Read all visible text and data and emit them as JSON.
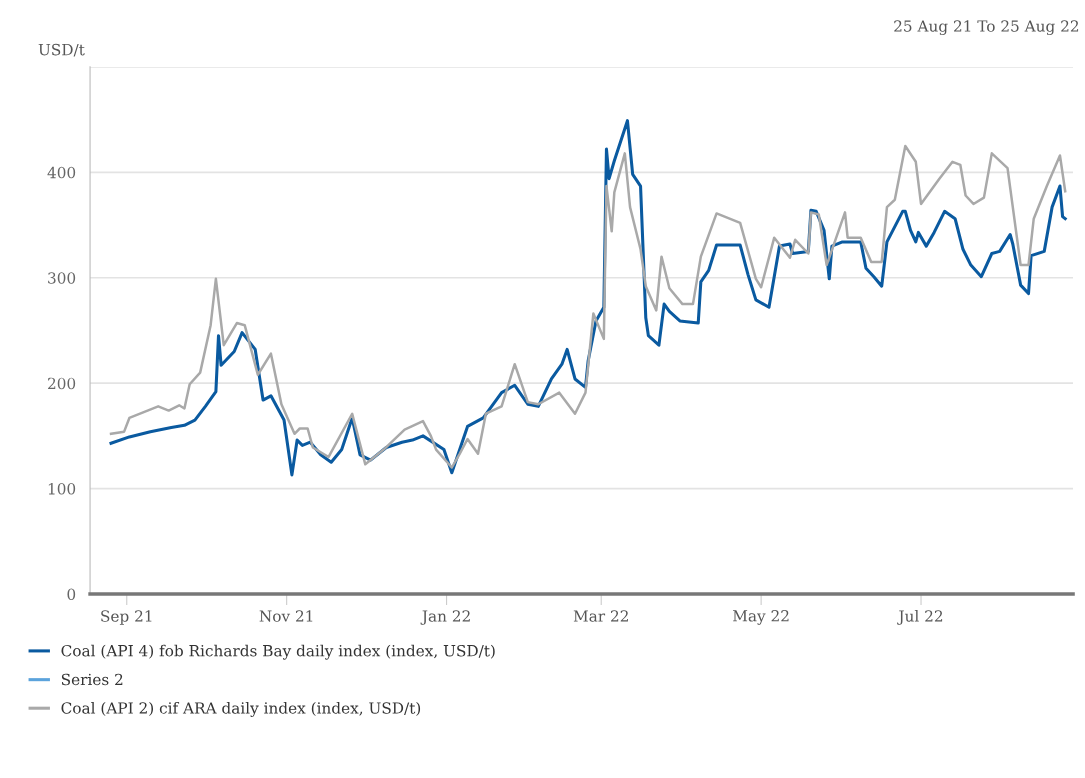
{
  "chart_data": {
    "type": "line",
    "subtitle": "25 Aug 21 To 25 Aug 22",
    "ylabel": "USD/t",
    "xlim": [
      "2021-08-18",
      "2022-08-28"
    ],
    "xticks": [
      {
        "value": "2021-09-01",
        "label": "Sep 21"
      },
      {
        "value": "2021-11-01",
        "label": "Nov 21"
      },
      {
        "value": "2022-01-01",
        "label": "Jan 22"
      },
      {
        "value": "2022-03-01",
        "label": "Mar 22"
      },
      {
        "value": "2022-05-01",
        "label": "May 22"
      },
      {
        "value": "2022-07-01",
        "label": "Jul 22"
      }
    ],
    "ylim": [
      0,
      500
    ],
    "yticks": [
      0,
      100,
      200,
      300,
      400,
      {
        "value": 500,
        "label": null
      }
    ],
    "grid": "y",
    "legend": "bottom",
    "marker": "none",
    "line_style": "solid",
    "series": [
      {
        "name": "Coal (API 4) fob Richards Bay daily index (index, USD/t)",
        "color": "#0a5aa0",
        "x": [
          "2021-08-26",
          "2021-09-02",
          "2021-09-10",
          "2021-09-18",
          "2021-09-23",
          "2021-09-27",
          "2021-10-01",
          "2021-10-05",
          "2021-10-06",
          "2021-10-07",
          "2021-10-12",
          "2021-10-15",
          "2021-10-20",
          "2021-10-23",
          "2021-10-26",
          "2021-10-31",
          "2021-11-03",
          "2021-11-05",
          "2021-11-07",
          "2021-11-10",
          "2021-11-14",
          "2021-11-18",
          "2021-11-22",
          "2021-11-26",
          "2021-11-29",
          "2021-12-03",
          "2021-12-09",
          "2021-12-15",
          "2021-12-19",
          "2021-12-23",
          "2021-12-31",
          "2022-01-03",
          "2022-01-09",
          "2022-01-15",
          "2022-01-22",
          "2022-01-27",
          "2022-02-01",
          "2022-02-05",
          "2022-02-10",
          "2022-02-14",
          "2022-02-16",
          "2022-02-19",
          "2022-02-23",
          "2022-02-24",
          "2022-02-27",
          "2022-03-02",
          "2022-03-03",
          "2022-03-04",
          "2022-03-06",
          "2022-03-11",
          "2022-03-13",
          "2022-03-16",
          "2022-03-18",
          "2022-03-19",
          "2022-03-23",
          "2022-03-25",
          "2022-03-27",
          "2022-03-31",
          "2022-04-07",
          "2022-04-08",
          "2022-04-11",
          "2022-04-14",
          "2022-04-23",
          "2022-04-26",
          "2022-04-29",
          "2022-05-04",
          "2022-05-08",
          "2022-05-12",
          "2022-05-13",
          "2022-05-19",
          "2022-05-20",
          "2022-05-22",
          "2022-05-25",
          "2022-05-27",
          "2022-05-28",
          "2022-06-01",
          "2022-06-08",
          "2022-06-10",
          "2022-06-13",
          "2022-06-16",
          "2022-06-18",
          "2022-06-24",
          "2022-06-25",
          "2022-06-27",
          "2022-06-29",
          "2022-06-30",
          "2022-07-03",
          "2022-07-06",
          "2022-07-10",
          "2022-07-14",
          "2022-07-17",
          "2022-07-20",
          "2022-07-24",
          "2022-07-28",
          "2022-07-31",
          "2022-08-04",
          "2022-08-05",
          "2022-08-08",
          "2022-08-11",
          "2022-08-12",
          "2022-08-17",
          "2022-08-20",
          "2022-08-23",
          "2022-08-24",
          "2022-08-25"
        ],
        "values": [
          143,
          149,
          154,
          158,
          160,
          165,
          178,
          192,
          245,
          217,
          230,
          248,
          232,
          184,
          188,
          165,
          113,
          146,
          141,
          144,
          132,
          125,
          137,
          167,
          132,
          127,
          139,
          144,
          146,
          150,
          137,
          115,
          159,
          167,
          191,
          198,
          180,
          178,
          204,
          218,
          232,
          204,
          196,
          221,
          259,
          272,
          422,
          394,
          411,
          449,
          398,
          387,
          262,
          245,
          236,
          275,
          268,
          259,
          257,
          296,
          307,
          331,
          331,
          303,
          279,
          272,
          330,
          332,
          323,
          325,
          364,
          363,
          345,
          299,
          330,
          334,
          334,
          309,
          301,
          292,
          334,
          363,
          363,
          345,
          334,
          343,
          330,
          343,
          363,
          356,
          327,
          312,
          301,
          323,
          325,
          341,
          332,
          293,
          285,
          321,
          325,
          367,
          387,
          358,
          356
        ]
      },
      {
        "name": "Series 2",
        "color": "#5ba3dc"
      },
      {
        "name": "Coal (API 2) cif ARA daily index (index, USD/t)",
        "color": "#a9a9a9",
        "x": [
          "2021-08-26",
          "2021-08-31",
          "2021-09-02",
          "2021-09-13",
          "2021-09-17",
          "2021-09-21",
          "2021-09-23",
          "2021-09-25",
          "2021-09-29",
          "2021-10-03",
          "2021-10-05",
          "2021-10-08",
          "2021-10-13",
          "2021-10-16",
          "2021-10-21",
          "2021-10-26",
          "2021-10-30",
          "2021-11-04",
          "2021-11-06",
          "2021-11-09",
          "2021-11-11",
          "2021-11-17",
          "2021-11-26",
          "2021-12-01",
          "2021-12-08",
          "2021-12-16",
          "2021-12-23",
          "2021-12-26",
          "2021-12-28",
          "2022-01-03",
          "2022-01-06",
          "2022-01-09",
          "2022-01-13",
          "2022-01-16",
          "2022-01-22",
          "2022-01-27",
          "2022-02-01",
          "2022-02-05",
          "2022-02-13",
          "2022-02-19",
          "2022-02-23",
          "2022-02-26",
          "2022-03-02",
          "2022-03-03",
          "2022-03-05",
          "2022-03-06",
          "2022-03-10",
          "2022-03-12",
          "2022-03-16",
          "2022-03-18",
          "2022-03-22",
          "2022-03-24",
          "2022-03-27",
          "2022-04-01",
          "2022-04-05",
          "2022-04-08",
          "2022-04-14",
          "2022-04-23",
          "2022-04-29",
          "2022-05-01",
          "2022-05-06",
          "2022-05-12",
          "2022-05-14",
          "2022-05-19",
          "2022-05-20",
          "2022-05-23",
          "2022-05-26",
          "2022-06-02",
          "2022-06-03",
          "2022-06-08",
          "2022-06-12",
          "2022-06-16",
          "2022-06-18",
          "2022-06-21",
          "2022-06-25",
          "2022-06-29",
          "2022-07-01",
          "2022-07-08",
          "2022-07-13",
          "2022-07-16",
          "2022-07-18",
          "2022-07-21",
          "2022-07-25",
          "2022-07-28",
          "2022-08-03",
          "2022-08-08",
          "2022-08-11",
          "2022-08-13",
          "2022-08-18",
          "2022-08-23",
          "2022-08-25"
        ],
        "values": [
          152,
          154,
          167,
          178,
          174,
          179,
          176,
          199,
          210,
          255,
          299,
          236,
          257,
          255,
          208,
          228,
          180,
          152,
          157,
          157,
          139,
          130,
          171,
          123,
          137,
          156,
          164,
          150,
          137,
          120,
          133,
          147,
          133,
          171,
          178,
          218,
          182,
          180,
          191,
          171,
          191,
          266,
          242,
          387,
          344,
          381,
          418,
          367,
          327,
          292,
          269,
          320,
          290,
          275,
          275,
          320,
          361,
          352,
          299,
          291,
          338,
          319,
          336,
          323,
          362,
          360,
          312,
          362,
          338,
          338,
          315,
          315,
          367,
          374,
          425,
          410,
          370,
          394,
          410,
          407,
          378,
          370,
          376,
          418,
          404,
          312,
          312,
          356,
          387,
          416,
          382
        ]
      }
    ]
  }
}
